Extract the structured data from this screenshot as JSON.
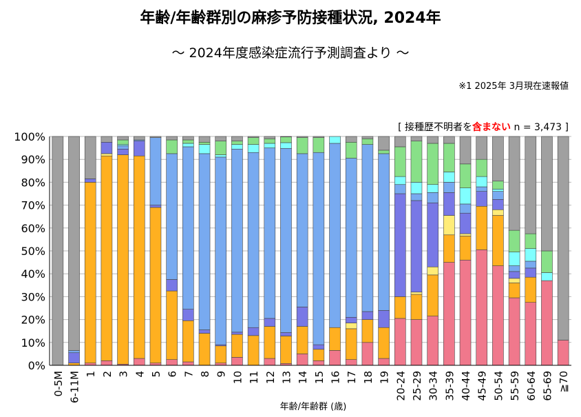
{
  "title": "年齢/年齢群別の麻疹予防接種状況, 2024年",
  "subtitle": "～ 2024年度感染症流行予測調査より ～",
  "footnote": "※1  2025年 3月現在速報値",
  "note": {
    "prefix": "[ 接種歴不明者を",
    "emphasis": "含まない",
    "suffix": " n = 3,473 ]"
  },
  "colors": {
    "unvaccinated": "#a0a0a0",
    "c1": "#f0788c",
    "c2": "#ffb020",
    "c3": "#ffec78",
    "c4": "#7878e6",
    "c5": "#78aaf0",
    "c6": "#80ffff",
    "c7": "#88e088"
  },
  "chart_data": {
    "type": "bar",
    "stacked": true,
    "xlabel": "年齢/年齢群 (歳)",
    "ylabel": "",
    "ylim": [
      0,
      100
    ],
    "y_ticks": [
      "0%",
      "10%",
      "20%",
      "30%",
      "40%",
      "50%",
      "60%",
      "70%",
      "80%",
      "90%",
      "100%"
    ],
    "grid": true,
    "categories": [
      "0-5M",
      "6-11M",
      "1",
      "2",
      "3",
      "4",
      "5",
      "6",
      "7",
      "8",
      "9",
      "10",
      "11",
      "12",
      "13",
      "14",
      "15",
      "16",
      "17",
      "18",
      "19",
      "20-24",
      "25-29",
      "30-34",
      "35-39",
      "40-44",
      "45-49",
      "50-54",
      "55-59",
      "60-64",
      "65-69",
      "≧70"
    ],
    "series": [
      {
        "color_key": "c1",
        "values": [
          0,
          0,
          1,
          2,
          0.5,
          3,
          1,
          2.5,
          1.5,
          0,
          1,
          3.5,
          0,
          3,
          0.8,
          5,
          2,
          6.5,
          2.5,
          10,
          3,
          20.5,
          20,
          21.5,
          45,
          46,
          50.5,
          43.5,
          29.5,
          27.5,
          37,
          11
        ]
      },
      {
        "color_key": "c2",
        "values": [
          0,
          1,
          79,
          89.5,
          91.5,
          88.5,
          68,
          30,
          18,
          14,
          7.5,
          10,
          13,
          14,
          12,
          12,
          5,
          10,
          13.5,
          10,
          13.5,
          9.5,
          11,
          18,
          12,
          10.5,
          19,
          22,
          6.5,
          11,
          0,
          0
        ]
      },
      {
        "color_key": "c3",
        "values": [
          0,
          0,
          0,
          1,
          0,
          0,
          0,
          0,
          0,
          0,
          0,
          0,
          0,
          0,
          0,
          0,
          0,
          0,
          2.5,
          0,
          0,
          0,
          1,
          3.5,
          8.5,
          1,
          0,
          2.5,
          2,
          0,
          0,
          0
        ]
      },
      {
        "color_key": "c4",
        "values": [
          0,
          4.5,
          1.5,
          5,
          2.5,
          6.5,
          1,
          5,
          5,
          1.5,
          0.5,
          1,
          3.5,
          3.5,
          1.5,
          8.5,
          2,
          0,
          2.5,
          3.5,
          7.5,
          45,
          40,
          28,
          10,
          9,
          6.5,
          4.5,
          3,
          4,
          0,
          0
        ]
      },
      {
        "color_key": "c5",
        "values": [
          0,
          1,
          0,
          0,
          1.5,
          0.5,
          29.5,
          55,
          71,
          77,
          82,
          80,
          76.5,
          74.5,
          80.5,
          67,
          84,
          80.5,
          69.5,
          73,
          68.5,
          4,
          3,
          4.5,
          4.5,
          4,
          2,
          3.5,
          2.5,
          3,
          0,
          0
        ]
      },
      {
        "color_key": "c6",
        "values": [
          0,
          0,
          0,
          0,
          0.5,
          0,
          0,
          0,
          1.5,
          4,
          1,
          2,
          3.5,
          2,
          2.5,
          0,
          0,
          3,
          0,
          0,
          0,
          3.5,
          5,
          3.5,
          4.5,
          7,
          4.5,
          1,
          6,
          5.5,
          3.5,
          0
        ]
      },
      {
        "color_key": "c7",
        "values": [
          0,
          0,
          0,
          0,
          2,
          0,
          0,
          6,
          1.5,
          1,
          6,
          1.5,
          3,
          2,
          2.5,
          7,
          6.5,
          0,
          7,
          2.5,
          1.5,
          13,
          18,
          18,
          12.5,
          10.5,
          7.5,
          3.5,
          9.5,
          6.5,
          9.5,
          0
        ]
      },
      {
        "color_key": "unvaccinated",
        "values": [
          100,
          93.5,
          18.5,
          2.5,
          1.5,
          1.5,
          0.5,
          1.5,
          1.5,
          2.5,
          2,
          2,
          0.5,
          1,
          0.2,
          0.5,
          0.5,
          0,
          2.5,
          1,
          6,
          4.5,
          2,
          3,
          3,
          12,
          10,
          19.5,
          41,
          42.5,
          50,
          89
        ]
      }
    ]
  }
}
